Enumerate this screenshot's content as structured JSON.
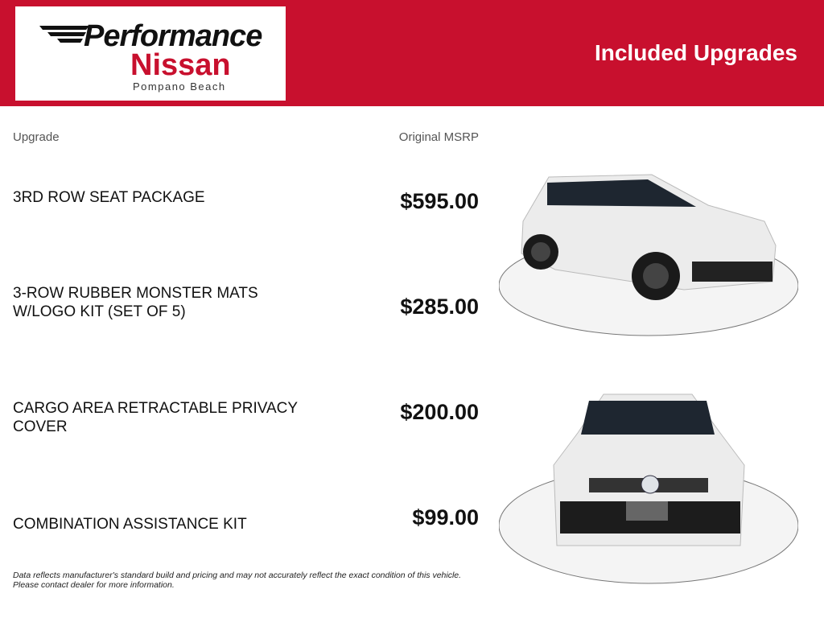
{
  "header": {
    "logo_line1": "Performance",
    "logo_line2": "Nissan",
    "logo_line3": "Pompano Beach",
    "title": "Included Upgrades",
    "brand_color": "#c8102e"
  },
  "table": {
    "col_upgrade": "Upgrade",
    "col_msrp": "Original MSRP",
    "rows": [
      {
        "name": "3RD ROW SEAT PACKAGE",
        "price": "$595.00"
      },
      {
        "name": "3-ROW RUBBER MONSTER MATS W/LOGO KIT (SET OF 5)",
        "price": "$285.00"
      },
      {
        "name": "CARGO AREA RETRACTABLE PRIVACY COVER",
        "price": "$200.00"
      },
      {
        "name": "COMBINATION ASSISTANCE KIT",
        "price": "$99.00"
      }
    ]
  },
  "disclaimer": {
    "line1": "Data reflects manufacturer's standard build and pricing and may not accurately reflect the exact condition of this vehicle.",
    "line2": "Please contact dealer for more information."
  }
}
